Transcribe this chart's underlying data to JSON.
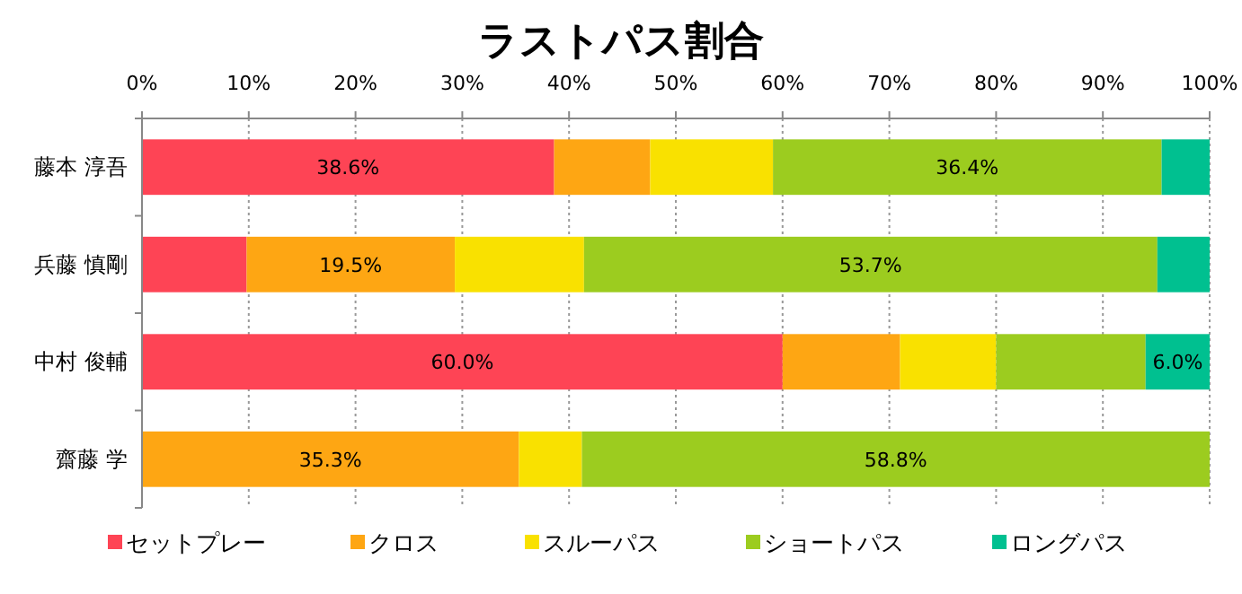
{
  "chart_data": {
    "type": "bar",
    "orientation": "horizontal",
    "stacked": true,
    "title": "ラストパス割合",
    "categories": [
      "藤本 淳吾",
      "兵藤 慎剛",
      "中村 俊輔",
      "齋藤 学"
    ],
    "series": [
      {
        "name": "セットプレー",
        "color": "#fe4455",
        "values": [
          38.6,
          9.8,
          60.0,
          0
        ],
        "value_labels": [
          "38.6%",
          null,
          "60.0%",
          null
        ]
      },
      {
        "name": "クロス",
        "color": "#fea613",
        "values": [
          9.0,
          19.5,
          11.0,
          35.3
        ],
        "value_labels": [
          null,
          "19.5%",
          null,
          "35.3%"
        ]
      },
      {
        "name": "スルーパス",
        "color": "#f9e100",
        "values": [
          11.5,
          12.1,
          9.0,
          5.9
        ],
        "value_labels": [
          null,
          null,
          null,
          null
        ]
      },
      {
        "name": "ショートパス",
        "color": "#9ccc1f",
        "values": [
          36.4,
          53.7,
          14.0,
          58.8
        ],
        "value_labels": [
          "36.4%",
          "53.7%",
          null,
          "58.8%"
        ]
      },
      {
        "name": "ロングパス",
        "color": "#00c090",
        "values": [
          4.5,
          4.9,
          6.0,
          0
        ],
        "value_labels": [
          null,
          null,
          "6.0%",
          null
        ]
      }
    ],
    "xlim": [
      0,
      100
    ],
    "xticks": [
      {
        "value": 0,
        "label": "0%"
      },
      {
        "value": 10,
        "label": "10%"
      },
      {
        "value": 20,
        "label": "20%"
      },
      {
        "value": 30,
        "label": "30%"
      },
      {
        "value": 40,
        "label": "40%"
      },
      {
        "value": 50,
        "label": "50%"
      },
      {
        "value": 60,
        "label": "60%"
      },
      {
        "value": 70,
        "label": "70%"
      },
      {
        "value": 80,
        "label": "80%"
      },
      {
        "value": 90,
        "label": "90%"
      },
      {
        "value": 100,
        "label": "100%"
      }
    ],
    "grid": "x",
    "legend": "bottom"
  }
}
